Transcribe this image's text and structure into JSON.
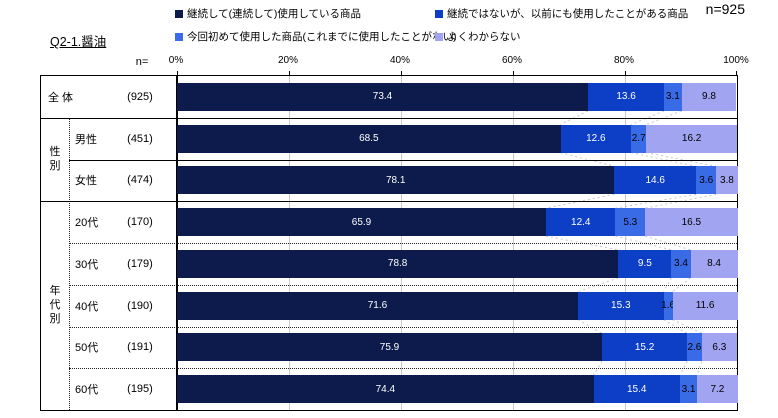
{
  "title": "Q2-1.醤油",
  "sample_label": "n=925",
  "n_header": "n=",
  "colors": {
    "grid": "#C9C9C9",
    "connector": "#C6C6C6",
    "border": "#000000"
  },
  "chart_data": {
    "type": "bar",
    "orientation": "horizontal",
    "stacked": true,
    "unit": "%",
    "xlim": [
      0,
      100
    ],
    "x_ticks": [
      "0%",
      "20%",
      "40%",
      "60%",
      "80%",
      "100%"
    ],
    "legend_position": "top",
    "grid": true,
    "series": [
      {
        "name": "継続して(連続して)使用している商品",
        "color": "#0C1B4B",
        "label_color": "#FFFFFF"
      },
      {
        "name": "継続ではないが、以前にも使用したことがある商品",
        "color": "#0D3FC6",
        "label_color": "#FFFFFF"
      },
      {
        "name": "今回初めて使用した商品(これまでに使用したことがない)",
        "color": "#3A6BE6",
        "label_color": "#000000"
      },
      {
        "name": "よくわからない",
        "color": "#A1A4F0",
        "label_color": "#000000"
      }
    ],
    "groups": [
      {
        "label": "",
        "rows": [
          {
            "label": "全 体",
            "n": "(925)",
            "values": [
              73.4,
              13.6,
              3.1,
              9.8
            ]
          }
        ]
      },
      {
        "label": "性別",
        "rows": [
          {
            "label": "男性",
            "n": "(451)",
            "values": [
              68.5,
              12.6,
              2.7,
              16.2
            ]
          },
          {
            "label": "女性",
            "n": "(474)",
            "values": [
              78.1,
              14.6,
              3.6,
              3.8
            ]
          }
        ]
      },
      {
        "label": "年代別",
        "rows": [
          {
            "label": "20代",
            "n": "(170)",
            "values": [
              65.9,
              12.4,
              5.3,
              16.5
            ]
          },
          {
            "label": "30代",
            "n": "(179)",
            "values": [
              78.8,
              9.5,
              3.4,
              8.4
            ]
          },
          {
            "label": "40代",
            "n": "(190)",
            "values": [
              71.6,
              15.3,
              1.6,
              11.6
            ]
          },
          {
            "label": "50代",
            "n": "(191)",
            "values": [
              75.9,
              15.2,
              2.6,
              6.3
            ]
          },
          {
            "label": "60代",
            "n": "(195)",
            "values": [
              74.4,
              15.4,
              3.1,
              7.2
            ]
          }
        ]
      }
    ]
  }
}
